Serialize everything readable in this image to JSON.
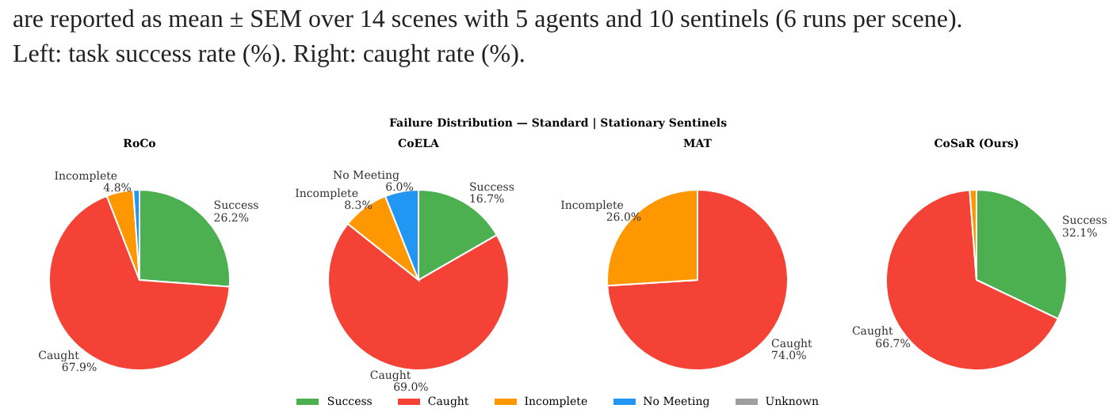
{
  "chart_data": [
    {
      "type": "pie",
      "title": "Failure Distribution — Standard | Stationary Sentinels",
      "annotations": [
        "are reported as mean ± SEM over 14 scenes with 5 agents and 10 sentinels (6 runs per scene). Left: task success rate (%). Right: caught rate (%)."
      ],
      "subtitle": "RoCo",
      "legend": "bottom",
      "categories": [
        "Success",
        "Caught",
        "Incomplete",
        "No Meeting",
        "Unknown"
      ],
      "values": [
        26.2,
        67.9,
        4.8,
        1.1,
        0
      ],
      "colors": [
        "#4caf50",
        "#f44336",
        "#ff9800",
        "#2196f3",
        "#9e9e9e"
      ],
      "value_labels": [
        "26.2%",
        "67.9%",
        "4.8%",
        null,
        null
      ]
    },
    {
      "type": "pie",
      "subtitle": "CoELA",
      "categories": [
        "Success",
        "Caught",
        "Incomplete",
        "No Meeting"
      ],
      "values": [
        16.7,
        69.0,
        8.3,
        6.0
      ],
      "colors": [
        "#4caf50",
        "#f44336",
        "#ff9800",
        "#2196f3"
      ],
      "value_labels": [
        "16.7%",
        "69.0%",
        "8.3%",
        "6.0%"
      ]
    },
    {
      "type": "pie",
      "subtitle": "MAT",
      "categories": [
        "Caught",
        "Incomplete"
      ],
      "values": [
        74.0,
        26.0
      ],
      "colors": [
        "#f44336",
        "#ff9800"
      ],
      "value_labels": [
        "74.0%",
        "26.0%"
      ]
    },
    {
      "type": "pie",
      "subtitle": "CoSaR (Ours)",
      "categories": [
        "Success",
        "Caught",
        null
      ],
      "values": [
        32.1,
        66.7,
        1.2
      ],
      "colors": [
        "#4caf50",
        "#f44336",
        "#ff9800"
      ],
      "value_labels": [
        "32.1%",
        "66.7%",
        null
      ]
    }
  ]
}
